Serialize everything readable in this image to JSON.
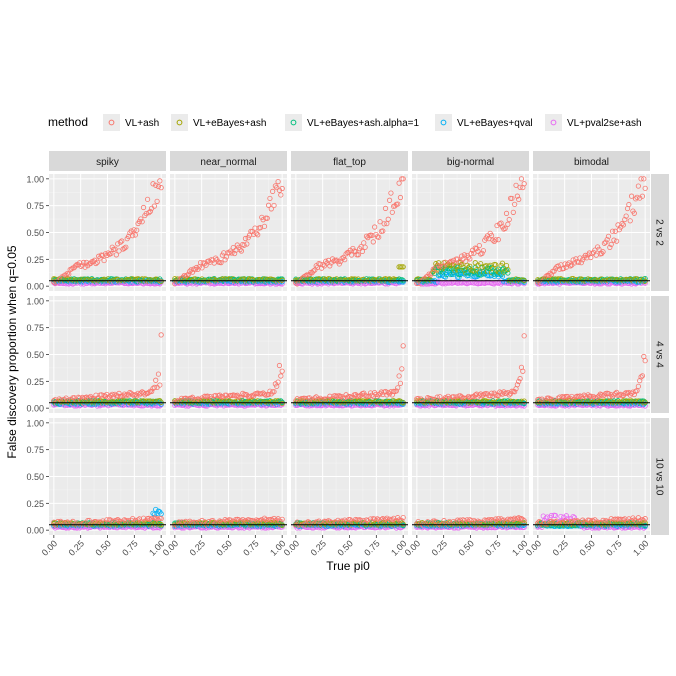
{
  "chart_data": {
    "type": "scatter",
    "title": "",
    "xlabel": "True pi0",
    "ylabel": "False discovery proportion when q=0.05",
    "xlim": [
      0,
      1
    ],
    "ylim": [
      0,
      1
    ],
    "x_ticks": [
      "0.00",
      "0.25",
      "0.50",
      "0.75",
      "1.00"
    ],
    "y_ticks": [
      "0.00",
      "0.25",
      "0.50",
      "0.75",
      "1.00"
    ],
    "grid": true,
    "legend_position": "top",
    "legend_title": "method",
    "reference_line_y": 0.05,
    "facet_columns": [
      "spiky",
      "near_normal",
      "flat_top",
      "big-normal",
      "bimodal"
    ],
    "facet_rows": [
      "2 vs 2",
      "4 vs 4",
      "10 vs 10"
    ],
    "series": [
      {
        "name": "VL+ash",
        "color": "#F8766D",
        "ash_curve": [
          [
            0.0,
            0.02
          ],
          [
            0.2,
            0.18
          ],
          [
            0.4,
            0.24
          ],
          [
            0.6,
            0.35
          ],
          [
            0.8,
            0.55
          ],
          [
            0.9,
            0.8
          ],
          [
            1.0,
            1.0
          ]
        ]
      },
      {
        "name": "VL+eBayes+ash",
        "color": "#A3A500"
      },
      {
        "name": "VL+eBayes+ash.alpha=1",
        "color": "#00BF7D"
      },
      {
        "name": "VL+eBayes+qval",
        "color": "#00B0F6"
      },
      {
        "name": "VL+pval2se+ash",
        "color": "#E76BF3"
      }
    ]
  }
}
